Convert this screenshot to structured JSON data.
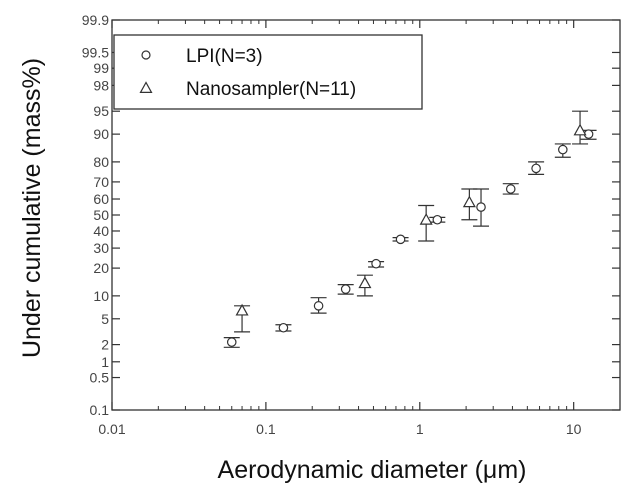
{
  "chart_data": {
    "type": "scatter",
    "title": "",
    "xlabel": "Aerodynamic diameter (μm)",
    "ylabel": "Under cumulative (mass%)",
    "x_scale": "log",
    "y_scale": "probability",
    "xlim": [
      0.01,
      20
    ],
    "ylim": [
      0.1,
      99.9
    ],
    "x_ticks": [
      {
        "value": 0.01,
        "label": "0.01"
      },
      {
        "value": 0.1,
        "label": "0.1"
      },
      {
        "value": 1,
        "label": "1"
      },
      {
        "value": 10,
        "label": "10"
      }
    ],
    "y_ticks": [
      {
        "value": 0.1,
        "label": "0.1"
      },
      {
        "value": 0.5,
        "label": "0.5"
      },
      {
        "value": 1,
        "label": "1"
      },
      {
        "value": 2,
        "label": "2"
      },
      {
        "value": 5,
        "label": "5"
      },
      {
        "value": 10,
        "label": "10"
      },
      {
        "value": 20,
        "label": "20"
      },
      {
        "value": 30,
        "label": "30"
      },
      {
        "value": 40,
        "label": "40"
      },
      {
        "value": 50,
        "label": "50"
      },
      {
        "value": 60,
        "label": "60"
      },
      {
        "value": 70,
        "label": "70"
      },
      {
        "value": 80,
        "label": "80"
      },
      {
        "value": 90,
        "label": "90"
      },
      {
        "value": 95,
        "label": "95"
      },
      {
        "value": 98,
        "label": "98"
      },
      {
        "value": 99,
        "label": "99"
      },
      {
        "value": 99.5,
        "label": "99.5"
      },
      {
        "value": 99.9,
        "label": "99.9"
      }
    ],
    "grid": false,
    "legend": {
      "position": "top-left"
    },
    "series": [
      {
        "name": "LPI(N=3)",
        "marker": "circle",
        "color": "#333333",
        "points": [
          {
            "x": 0.06,
            "y": 2.2,
            "lo": 1.8,
            "hi": 2.6
          },
          {
            "x": 0.13,
            "y": 3.7,
            "lo": 3.3,
            "hi": 4.1
          },
          {
            "x": 0.22,
            "y": 7.5,
            "lo": 6.0,
            "hi": 9.5
          },
          {
            "x": 0.33,
            "y": 12,
            "lo": 10.5,
            "hi": 13.5
          },
          {
            "x": 0.52,
            "y": 22,
            "lo": 20.5,
            "hi": 23
          },
          {
            "x": 0.75,
            "y": 35,
            "lo": 34,
            "hi": 36
          },
          {
            "x": 1.3,
            "y": 47,
            "lo": 45.5,
            "hi": 48.5
          },
          {
            "x": 2.5,
            "y": 55,
            "lo": 43,
            "hi": 66
          },
          {
            "x": 3.9,
            "y": 66,
            "lo": 63,
            "hi": 69
          },
          {
            "x": 5.7,
            "y": 77,
            "lo": 74,
            "hi": 80
          },
          {
            "x": 8.5,
            "y": 85,
            "lo": 82,
            "hi": 87
          },
          {
            "x": 12.5,
            "y": 90,
            "lo": 88.5,
            "hi": 91
          }
        ]
      },
      {
        "name": "Nanosampler(N=11)",
        "marker": "triangle",
        "color": "#333333",
        "points": [
          {
            "x": 0.07,
            "y": 6.5,
            "lo": 3.2,
            "hi": 7.5
          },
          {
            "x": 0.44,
            "y": 14,
            "lo": 10,
            "hi": 17
          },
          {
            "x": 1.1,
            "y": 47,
            "lo": 34,
            "hi": 56
          },
          {
            "x": 2.1,
            "y": 58,
            "lo": 47,
            "hi": 66
          },
          {
            "x": 11,
            "y": 91,
            "lo": 87,
            "hi": 95
          }
        ]
      }
    ]
  }
}
